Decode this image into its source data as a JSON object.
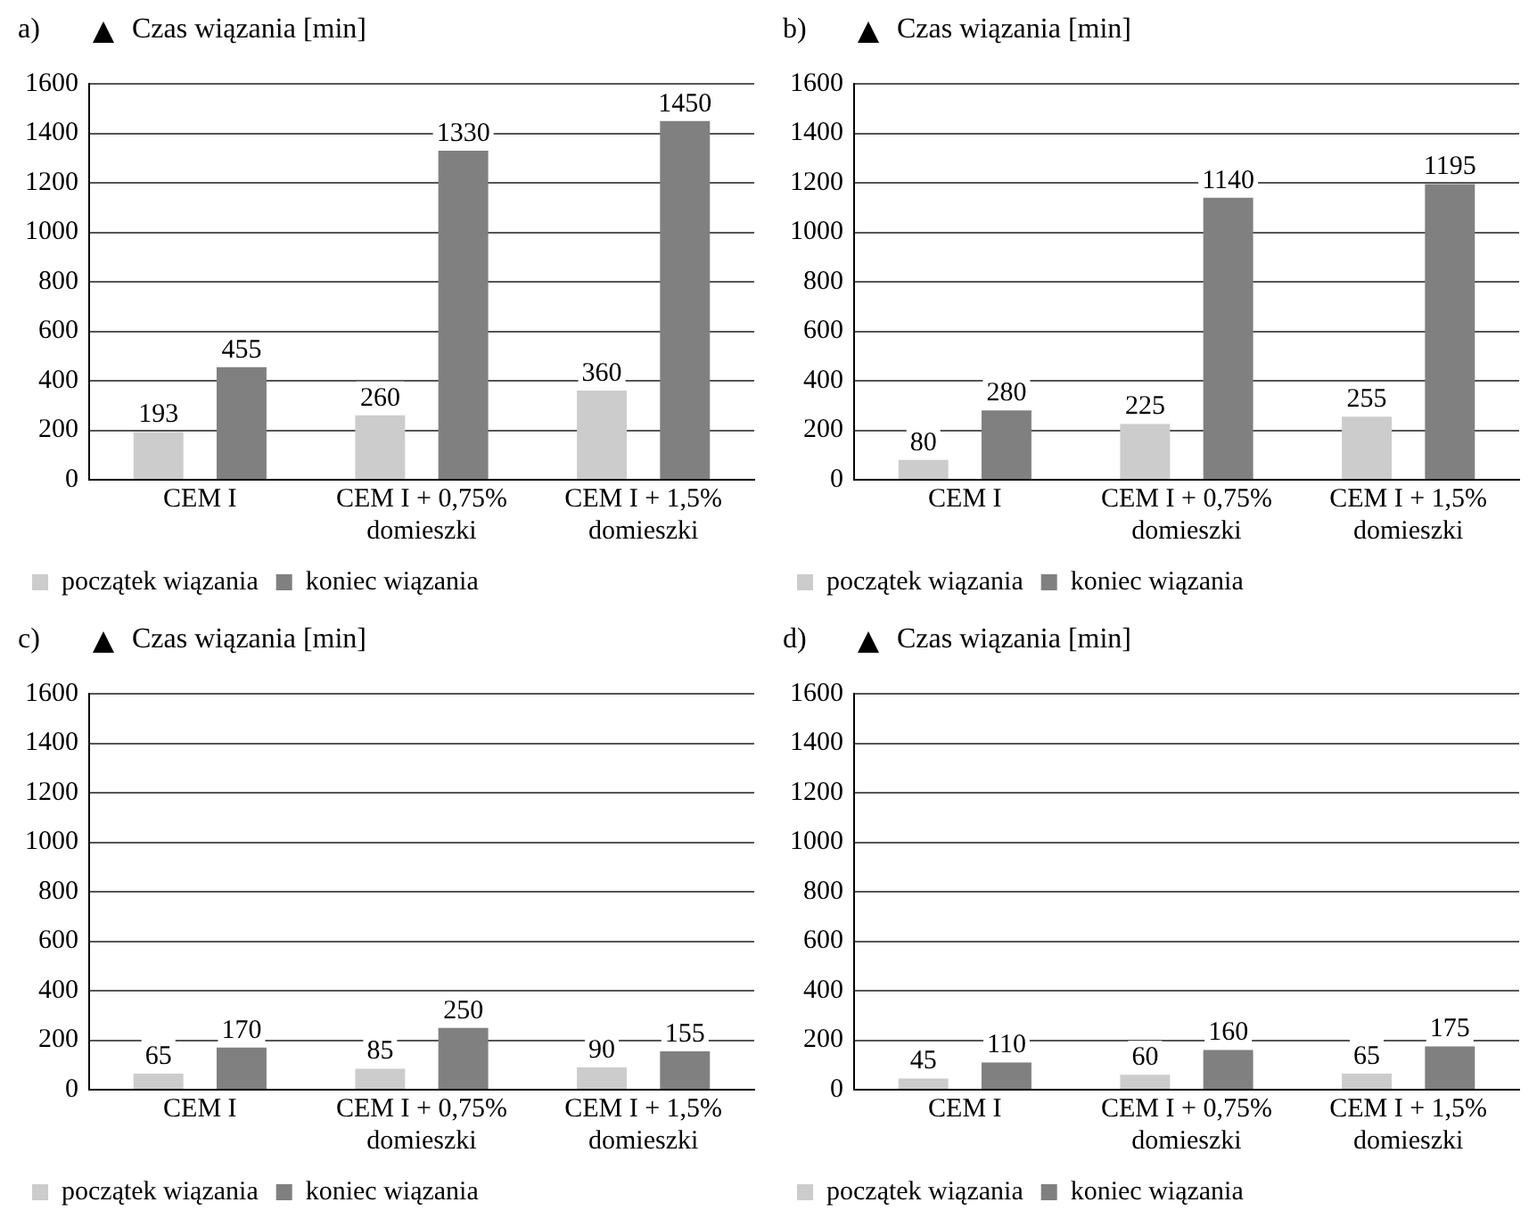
{
  "chart_data": [
    {
      "type": "bar",
      "title": "a)",
      "ylabel": "Czas wiązania [min]",
      "categories": [
        "CEM I",
        "CEM I + 0,75% domieszki",
        "CEM I + 1,5% domieszki"
      ],
      "series": [
        {
          "name": "początek wiązania",
          "color": "#cccccc",
          "values": [
            193,
            260,
            360
          ]
        },
        {
          "name": "koniec wiązania",
          "color": "#808080",
          "values": [
            455,
            1330,
            1450
          ]
        }
      ],
      "ylim": [
        0,
        1600
      ],
      "yticks": [
        0,
        200,
        400,
        600,
        800,
        1000,
        1200,
        1400,
        1600
      ],
      "grid": "y",
      "legend": "bottom left",
      "data_labels": true
    },
    {
      "type": "bar",
      "title": "b)",
      "ylabel": "Czas wiązania [min]",
      "categories": [
        "CEM I",
        "CEM I + 0,75% domieszki",
        "CEM I + 1,5% domieszki"
      ],
      "series": [
        {
          "name": "początek wiązania",
          "color": "#cccccc",
          "values": [
            80,
            225,
            255
          ]
        },
        {
          "name": "koniec wiązania",
          "color": "#808080",
          "values": [
            280,
            1140,
            1195
          ]
        }
      ],
      "ylim": [
        0,
        1600
      ],
      "yticks": [
        0,
        200,
        400,
        600,
        800,
        1000,
        1200,
        1400,
        1600
      ],
      "grid": "y",
      "legend": "bottom left",
      "data_labels": true
    },
    {
      "type": "bar",
      "title": "c)",
      "ylabel": "Czas wiązania [min]",
      "categories": [
        "CEM I",
        "CEM I + 0,75% domieszki",
        "CEM I + 1,5% domieszki"
      ],
      "series": [
        {
          "name": "początek wiązania",
          "color": "#cccccc",
          "values": [
            65,
            85,
            90
          ]
        },
        {
          "name": "koniec wiązania",
          "color": "#808080",
          "values": [
            170,
            250,
            155
          ]
        }
      ],
      "ylim": [
        0,
        1600
      ],
      "yticks": [
        0,
        200,
        400,
        600,
        800,
        1000,
        1200,
        1400,
        1600
      ],
      "grid": "y",
      "legend": "bottom left",
      "data_labels": true
    },
    {
      "type": "bar",
      "title": "d)",
      "ylabel": "Czas wiązania [min]",
      "categories": [
        "CEM I",
        "CEM I + 0,75% domieszki",
        "CEM I + 1,5% domieszki"
      ],
      "series": [
        {
          "name": "początek wiązania",
          "color": "#cccccc",
          "values": [
            45,
            60,
            65
          ]
        },
        {
          "name": "koniec wiązania",
          "color": "#808080",
          "values": [
            110,
            160,
            175
          ]
        }
      ],
      "ylim": [
        0,
        1600
      ],
      "yticks": [
        0,
        200,
        400,
        600,
        800,
        1000,
        1200,
        1400,
        1600
      ],
      "grid": "y",
      "legend": "bottom left",
      "data_labels": true
    }
  ]
}
